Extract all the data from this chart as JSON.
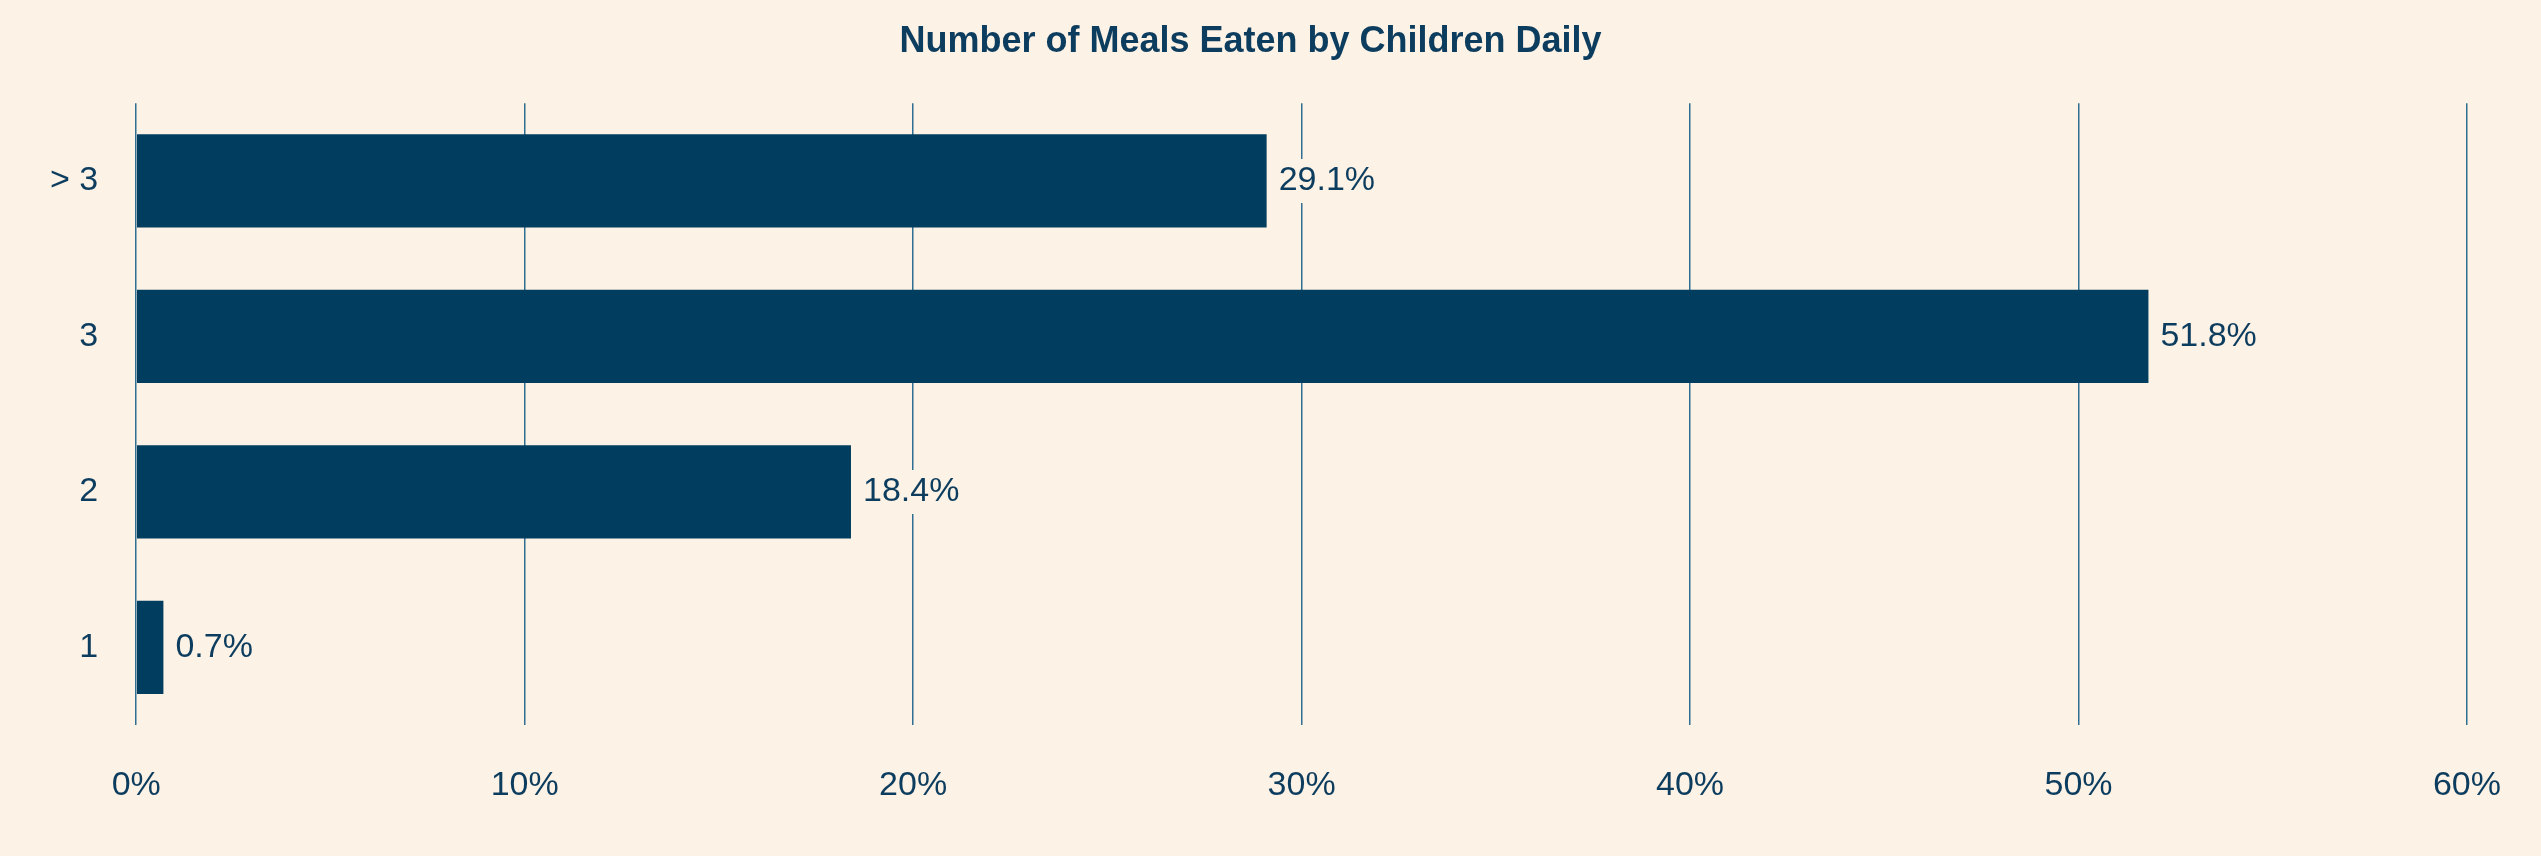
{
  "chart_data": {
    "type": "bar",
    "orientation": "horizontal",
    "title": "Number of Meals Eaten by Children Daily",
    "categories": [
      "> 3",
      "3",
      "2",
      "1"
    ],
    "values": [
      29.1,
      51.8,
      18.4,
      0.7
    ],
    "color": "#003d5f",
    "xlim": [
      0,
      60
    ],
    "xticks": [
      {
        "value": 0,
        "label": "0%"
      },
      {
        "value": 10,
        "label": "10%"
      },
      {
        "value": 20,
        "label": "20%"
      },
      {
        "value": 30,
        "label": "30%"
      },
      {
        "value": 40,
        "label": "40%"
      },
      {
        "value": 50,
        "label": "50%"
      },
      {
        "value": 60,
        "label": "60%"
      }
    ],
    "grid": "x",
    "legend": false,
    "value_labels": [
      "29.1%",
      "51.8%",
      "18.4%",
      "0.7%"
    ]
  }
}
